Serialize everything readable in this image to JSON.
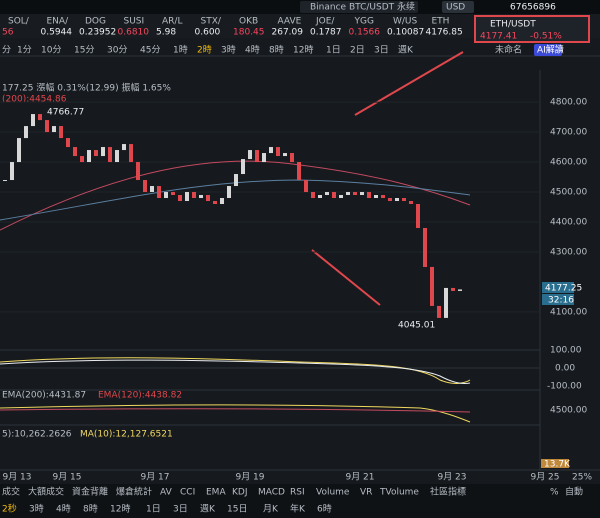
{
  "top_bar": {
    "search": "Binance BTC/USDT 永续",
    "currency": "USD",
    "account": "67656896"
  },
  "tickers": [
    {
      "symbol": "SOL/",
      "price": "56"
    },
    {
      "symbol": "ENA/",
      "price": "0.5944"
    },
    {
      "symbol": "DOG",
      "price": "0.23952"
    },
    {
      "symbol": "SUSI",
      "price": "0.6810"
    },
    {
      "symbol": "AR/L",
      "price": "5.98"
    },
    {
      "symbol": "STX/",
      "price": "0.600"
    },
    {
      "symbol": "OKB",
      "price": "180.45"
    },
    {
      "symbol": "AAVE",
      "price": "267.09"
    },
    {
      "symbol": "JOE/",
      "price": "0.1787"
    },
    {
      "symbol": "YGG",
      "price": "0.1566"
    },
    {
      "symbol": "W/US",
      "price": "0.10087"
    },
    {
      "symbol": "ETH",
      "price": "4176.85"
    }
  ],
  "popup": {
    "symbol": "ETH/USDT",
    "price": "4177.41",
    "change": "-0.51%"
  },
  "intervals": [
    "分",
    "1分",
    "10分",
    "15分",
    "30分",
    "45分",
    "1時",
    "2時",
    "3時",
    "4時",
    "8時",
    "12時",
    "1日",
    "2日",
    "3日",
    "週K"
  ],
  "toolbar": {
    "layout": "未命名",
    "ai": "AI解讀"
  },
  "chart_data": {
    "type": "candlestick",
    "header": "177.25 漲幅 0.31%(12.99) 振幅 1.65%",
    "ma_label": "(200):4454.86",
    "closes": [
      4540,
      4600,
      4680,
      4720,
      4760,
      4740,
      4700,
      4720,
      4680,
      4650,
      4620,
      4600,
      4640,
      4620,
      4650,
      4600,
      4640,
      4660,
      4600,
      4540,
      4500,
      4520,
      4480,
      4500,
      4490,
      4470,
      4500,
      4480,
      4490,
      4470,
      4460,
      4480,
      4520,
      4560,
      4610,
      4640,
      4600,
      4630,
      4650,
      4620,
      4630,
      4600,
      4540,
      4500,
      4480,
      4490,
      4500,
      4480,
      4490,
      4500,
      4490,
      4500,
      4480,
      4490,
      4480,
      4470,
      4480,
      4470,
      4460,
      4380,
      4250,
      4120,
      4080,
      4180,
      4170,
      4175
    ],
    "ylim": [
      3973,
      4907
    ],
    "yticks": [
      {
        "value": 4800,
        "label": "4800.00"
      },
      {
        "value": 4700,
        "label": "4700.00"
      },
      {
        "value": 4600,
        "label": "4600.00"
      },
      {
        "value": 4500,
        "label": "4500.00"
      },
      {
        "value": 4400,
        "label": "4400.00"
      },
      {
        "value": 4300,
        "label": "4300.00"
      },
      {
        "value": 4100,
        "label": "4100.00"
      }
    ],
    "high_label": "4766.77",
    "low_label": "4045.01",
    "last_price": "4177.25",
    "countdown": "32:16",
    "x_labels": [
      "9月 13",
      "9月 15",
      "9月 17",
      "9月 19",
      "9月 21",
      "9月 23",
      "9月 25"
    ],
    "x_right": "25%"
  },
  "indicators": {
    "macd_ticks": [
      "100.00",
      "0.00",
      "-100.00"
    ],
    "ema_label": "EMA(200):4431.87",
    "ema2_label": "EMA(120):4438.82",
    "ema_tick": "4500.00",
    "vol_label": "5):10,262.2626",
    "vol_ma": "MA(10):12,127.6521",
    "vol_tick": "13.7K"
  },
  "bottom": {
    "indicators": [
      "成交",
      "大額成交",
      "資金背離",
      "爆倉統計",
      "AV",
      "CCI",
      "EMA",
      "KDJ",
      "MACD",
      "RSI",
      "Volume",
      "VR",
      "TVolume",
      "社區指標"
    ],
    "right": [
      "%",
      "自動"
    ],
    "intervals": [
      "2秒",
      "3時",
      "4時",
      "8時",
      "12時",
      "1日",
      "3日",
      "週K",
      "15日",
      "月K",
      "年K",
      "6時"
    ]
  }
}
